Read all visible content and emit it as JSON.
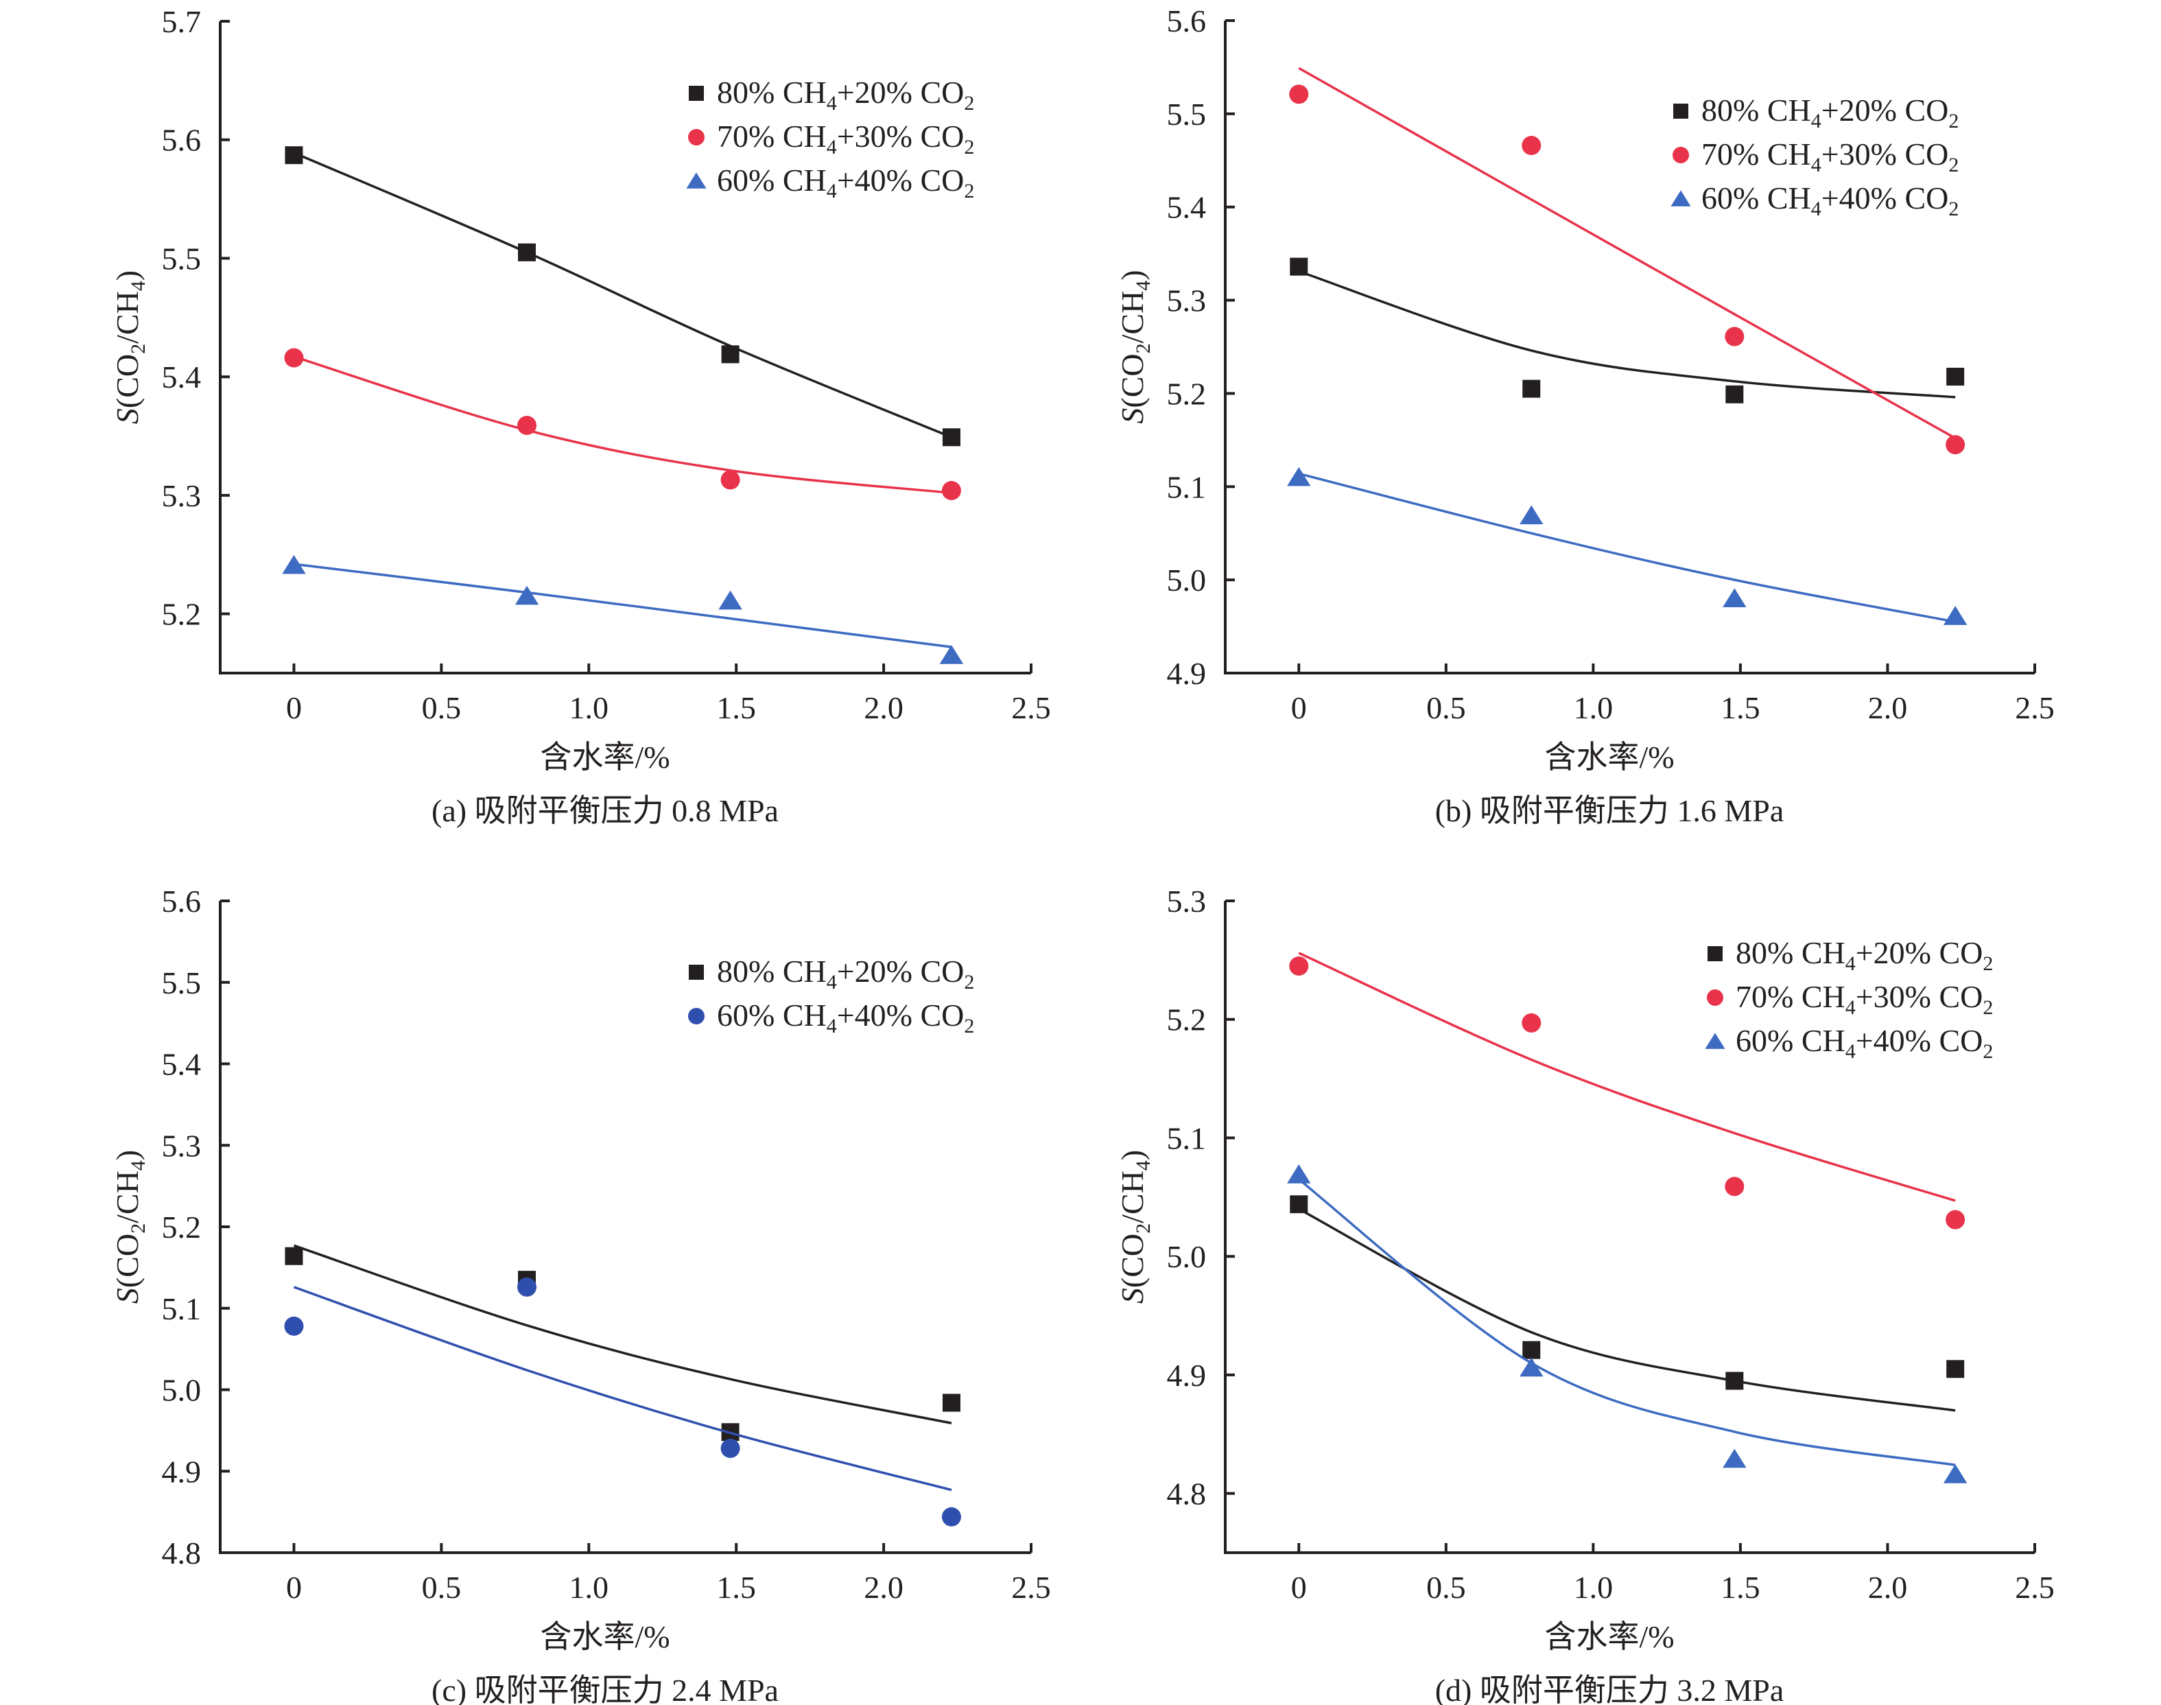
{
  "figure": {
    "x_axis_label": "含水率/%",
    "y_axis_label_prefix": "S",
    "y_axis_label_body": "(CO",
    "y_axis_label_sub1": "2",
    "y_axis_label_mid": "/CH",
    "y_axis_label_sub2": "4",
    "y_axis_label_end": ")",
    "colors": {
      "black": "#231f20",
      "red": "#e8334a",
      "blue": "#3d6bc1",
      "blue_dark": "#2f4fae"
    }
  },
  "chart_data": [
    {
      "id": "a",
      "type": "scatter",
      "title": "(a) 吸附平衡压力 0.8 MPa",
      "xlabel": "含水率/%",
      "ylabel": "S(CO2/CH4)",
      "xlim": [
        -0.25,
        2.5
      ],
      "ylim": [
        5.15,
        5.7
      ],
      "xticks": [
        0,
        0.5,
        1.0,
        1.5,
        2.0,
        2.5
      ],
      "xtick_labels": [
        "0",
        "0.5",
        "1.0",
        "1.5",
        "2.0",
        "2.5"
      ],
      "yticks": [
        5.2,
        5.3,
        5.4,
        5.5,
        5.6,
        5.7
      ],
      "ytick_labels": [
        "5.2",
        "5.3",
        "5.4",
        "5.5",
        "5.6",
        "5.7"
      ],
      "legend": "top-right",
      "x": [
        0,
        0.79,
        1.48,
        2.23
      ],
      "series": [
        {
          "name": "80% CH4+20% CO2",
          "n1": "80% CH",
          "s1": "4",
          "n2": "+20% CO",
          "s2": "2",
          "marker": "square",
          "color": "black",
          "values": [
            5.587,
            5.505,
            5.419,
            5.349
          ],
          "fit": [
            5.589,
            5.505,
            5.426,
            5.349
          ],
          "fit_type": "linear"
        },
        {
          "name": "70% CH4+30% CO2",
          "n1": "70% CH",
          "s1": "4",
          "n2": "+30% CO",
          "s2": "2",
          "marker": "circle",
          "color": "red",
          "values": [
            5.416,
            5.359,
            5.313,
            5.304
          ],
          "fit": [
            5.417,
            5.355,
            5.321,
            5.302
          ],
          "fit_type": "exponential"
        },
        {
          "name": "60% CH4+40% CO2",
          "n1": "60% CH",
          "s1": "4",
          "n2": "+40% CO",
          "s2": "2",
          "marker": "triangle",
          "color": "blue",
          "values": [
            5.241,
            5.215,
            5.211,
            5.165
          ],
          "fit": [
            5.242,
            5.218,
            5.196,
            5.172
          ],
          "fit_type": "linear"
        }
      ]
    },
    {
      "id": "b",
      "type": "scatter",
      "title": "(b) 吸附平衡压力 1.6 MPa",
      "xlabel": "含水率/%",
      "ylabel": "S(CO2/CH4)",
      "xlim": [
        -0.25,
        2.5
      ],
      "ylim": [
        4.9,
        5.6
      ],
      "xticks": [
        0,
        0.5,
        1.0,
        1.5,
        2.0,
        2.5
      ],
      "xtick_labels": [
        "0",
        "0.5",
        "1.0",
        "1.5",
        "2.0",
        "2.5"
      ],
      "yticks": [
        4.9,
        5.0,
        5.1,
        5.2,
        5.3,
        5.4,
        5.5,
        5.6
      ],
      "ytick_labels": [
        "4.9",
        "5.0",
        "5.1",
        "5.2",
        "5.3",
        "5.4",
        "5.5",
        "5.6"
      ],
      "legend": "top-right",
      "x": [
        0,
        0.79,
        1.48,
        2.23
      ],
      "series": [
        {
          "name": "80% CH4+20% CO2",
          "n1": "80% CH",
          "s1": "4",
          "n2": "+20% CO",
          "s2": "2",
          "marker": "square",
          "color": "black",
          "values": [
            5.336,
            5.205,
            5.199,
            5.218
          ],
          "fit": [
            5.331,
            5.246,
            5.213,
            5.196
          ],
          "fit_type": "exponential"
        },
        {
          "name": "70% CH4+30% CO2",
          "n1": "70% CH",
          "s1": "4",
          "n2": "+30% CO",
          "s2": "2",
          "marker": "circle",
          "color": "red",
          "values": [
            5.521,
            5.466,
            5.261,
            5.145
          ],
          "fit": [
            5.549,
            5.408,
            5.285,
            5.152
          ],
          "fit_type": "linear"
        },
        {
          "name": "60% CH4+40% CO2",
          "n1": "60% CH",
          "s1": "4",
          "n2": "+40% CO",
          "s2": "2",
          "marker": "triangle",
          "color": "blue",
          "values": [
            5.11,
            5.069,
            4.98,
            4.961
          ],
          "fit": [
            5.114,
            5.05,
            5.0,
            4.955
          ],
          "fit_type": "linear"
        }
      ]
    },
    {
      "id": "c",
      "type": "scatter",
      "title": "(c) 吸附平衡压力 2.4 MPa",
      "xlabel": "含水率/%",
      "ylabel": "S(CO2/CH4)",
      "xlim": [
        -0.25,
        2.5
      ],
      "ylim": [
        4.8,
        5.6
      ],
      "xticks": [
        0,
        0.5,
        1.0,
        1.5,
        2.0,
        2.5
      ],
      "xtick_labels": [
        "0",
        "0.5",
        "1.0",
        "1.5",
        "2.0",
        "2.5"
      ],
      "yticks": [
        4.8,
        4.9,
        5.0,
        5.1,
        5.2,
        5.3,
        5.4,
        5.5,
        5.6
      ],
      "ytick_labels": [
        "4.8",
        "4.9",
        "5.0",
        "5.1",
        "5.2",
        "5.3",
        "5.4",
        "5.5",
        "5.6"
      ],
      "legend": "top-right",
      "x": [
        0,
        0.79,
        1.48,
        2.23
      ],
      "series": [
        {
          "name": "80% CH4+20% CO2",
          "n1": "80% CH",
          "s1": "4",
          "n2": "+20% CO",
          "s2": "2",
          "marker": "square",
          "color": "black",
          "values": [
            5.164,
            5.135,
            4.948,
            4.984
          ],
          "fit": [
            5.177,
            5.079,
            5.013,
            4.959
          ],
          "fit_type": "exponential"
        },
        {
          "name": "60% CH4+40% CO2",
          "n1": "60% CH",
          "s1": "4",
          "n2": "+40% CO",
          "s2": "2",
          "marker": "circle",
          "color": "blue_dark",
          "values": [
            5.078,
            5.126,
            4.928,
            4.844
          ],
          "fit": [
            5.126,
            5.024,
            4.947,
            4.877
          ],
          "fit_type": "exponential"
        }
      ]
    },
    {
      "id": "d",
      "type": "scatter",
      "title": "(d) 吸附平衡压力 3.2 MPa",
      "xlabel": "含水率/%",
      "ylabel": "S(CO2/CH4)",
      "xlim": [
        -0.25,
        2.5
      ],
      "ylim": [
        4.75,
        5.3
      ],
      "xticks": [
        0,
        0.5,
        1.0,
        1.5,
        2.0,
        2.5
      ],
      "xtick_labels": [
        "0",
        "0.5",
        "1.0",
        "1.5",
        "2.0",
        "2.5"
      ],
      "yticks": [
        4.8,
        4.9,
        5.0,
        5.1,
        5.2,
        5.3
      ],
      "ytick_labels": [
        "4.8",
        "4.9",
        "5.0",
        "5.1",
        "5.2",
        "5.3"
      ],
      "legend": "top-right",
      "x": [
        0,
        0.79,
        1.48,
        2.23
      ],
      "series": [
        {
          "name": "80% CH4+20% CO2",
          "n1": "80% CH",
          "s1": "4",
          "n2": "+20% CO",
          "s2": "2",
          "marker": "square",
          "color": "black",
          "values": [
            5.044,
            4.921,
            4.895,
            4.905
          ],
          "fit": [
            5.04,
            4.936,
            4.895,
            4.87
          ],
          "fit_type": "exponential"
        },
        {
          "name": "70% CH4+30% CO2",
          "n1": "70% CH",
          "s1": "4",
          "n2": "+30% CO",
          "s2": "2",
          "marker": "circle",
          "color": "red",
          "values": [
            5.245,
            5.197,
            5.059,
            5.031
          ],
          "fit": [
            5.256,
            5.166,
            5.104,
            5.047
          ],
          "fit_type": "exponential"
        },
        {
          "name": "60% CH4+40% CO2",
          "n1": "60% CH",
          "s1": "4",
          "n2": "+40% CO",
          "s2": "2",
          "marker": "triangle",
          "color": "blue",
          "values": [
            5.069,
            4.906,
            4.829,
            4.816
          ],
          "fit": [
            5.065,
            4.91,
            4.852,
            4.824
          ],
          "fit_type": "exponential"
        }
      ]
    }
  ]
}
